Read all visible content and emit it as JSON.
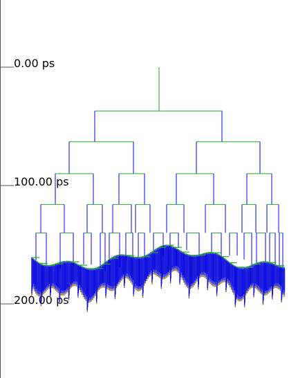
{
  "timeline": {
    "unit": "ps",
    "ticks": [
      {
        "value": 0,
        "label": "0.00 ps"
      },
      {
        "value": 100,
        "label": "100.00 ps"
      },
      {
        "value": 200,
        "label": "200.00 ps"
      }
    ]
  },
  "colors": {
    "axis": "#555555",
    "horizontal_branch": "#22aa22",
    "vertical_branch": "#0000ff",
    "dense_wire": "#1a1a8c",
    "leaf_tip": "#8a6a2a",
    "root": "#22aa22"
  },
  "tree": {
    "root_depth": 0,
    "levels": [
      {
        "depth": 37,
        "nodes": 2
      },
      {
        "depth": 63,
        "nodes": 4
      },
      {
        "depth": 90,
        "nodes": 8
      },
      {
        "depth": 116,
        "nodes": 16
      },
      {
        "depth": 140,
        "nodes": 32
      }
    ],
    "leaf_count": 192
  }
}
